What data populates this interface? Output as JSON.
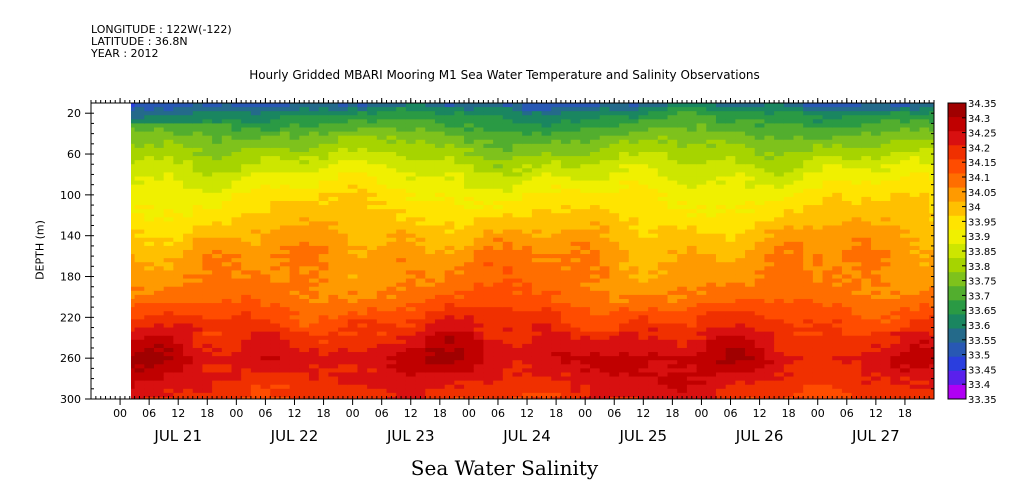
{
  "header": {
    "longitude": "LONGITUDE : 122W(-122)",
    "latitude": "LATITUDE : 36.8N",
    "year": "YEAR : 2012",
    "title": "Hourly Gridded MBARI Mooring M1 Sea Water Temperature and Salinity Observations"
  },
  "footer": {
    "variable_label": "Sea Water Salinity"
  },
  "chart_data": {
    "type": "heatmap",
    "title": "Hourly Gridded MBARI Mooring M1 Sea Water Temperature and Salinity Observations",
    "xlabel": "",
    "ylabel": "DEPTH (m)",
    "variable": "Sea Water Salinity",
    "y_axis": {
      "ticks": [
        20,
        60,
        100,
        140,
        180,
        220,
        260,
        300
      ],
      "range": [
        10,
        300
      ],
      "inverted": true
    },
    "x_axis": {
      "start": "JUL 20 18:00",
      "end": "JUL 27 23:00",
      "data_start": "JUL 21 01:00",
      "hour_ticks": [
        "00",
        "06",
        "12",
        "18",
        "00",
        "06",
        "12",
        "18",
        "00",
        "06",
        "12",
        "18",
        "00",
        "06",
        "12",
        "18",
        "00",
        "06",
        "12",
        "18",
        "00",
        "06",
        "12",
        "18",
        "00",
        "06",
        "12",
        "18"
      ],
      "day_labels": [
        "JUL 21",
        "JUL 22",
        "JUL 23",
        "JUL 24",
        "JUL 25",
        "JUL 26",
        "JUL 27"
      ]
    },
    "colorbar": {
      "levels": [
        34.35,
        34.3,
        34.25,
        34.2,
        34.15,
        34.1,
        34.05,
        34,
        33.95,
        33.9,
        33.85,
        33.8,
        33.75,
        33.7,
        33.65,
        33.6,
        33.55,
        33.5,
        33.45,
        33.4,
        33.35
      ],
      "labels": [
        "34.35",
        "34.3",
        "34.25",
        "34.2",
        "34.15",
        "34.1",
        "34.05",
        "34",
        "33.95",
        "33.9",
        "33.85",
        "33.8",
        "33.75",
        "33.7",
        "33.65",
        "33.6",
        "33.55",
        "33.5",
        "33.45",
        "33.4",
        "33.35"
      ],
      "colors": [
        "#a00000",
        "#c00000",
        "#d81010",
        "#f03000",
        "#ff4c00",
        "#ff6e00",
        "#ff9a00",
        "#ffc000",
        "#ffe400",
        "#f0f000",
        "#cde600",
        "#a6d400",
        "#7ec21c",
        "#52ae2e",
        "#2a9a44",
        "#1a8660",
        "#246a8a",
        "#2858b4",
        "#2a3ede",
        "#5a20ec",
        "#b000f4"
      ]
    },
    "profile": {
      "depths": [
        10,
        20,
        40,
        60,
        80,
        100,
        120,
        140,
        160,
        180,
        200,
        220,
        240,
        260,
        280,
        300
      ],
      "salinity": [
        33.52,
        33.62,
        33.72,
        33.8,
        33.87,
        33.93,
        33.97,
        34.02,
        34.06,
        34.07,
        34.1,
        34.17,
        34.23,
        34.28,
        34.24,
        34.2
      ]
    },
    "legend": "colorbar-right",
    "grid": false
  }
}
